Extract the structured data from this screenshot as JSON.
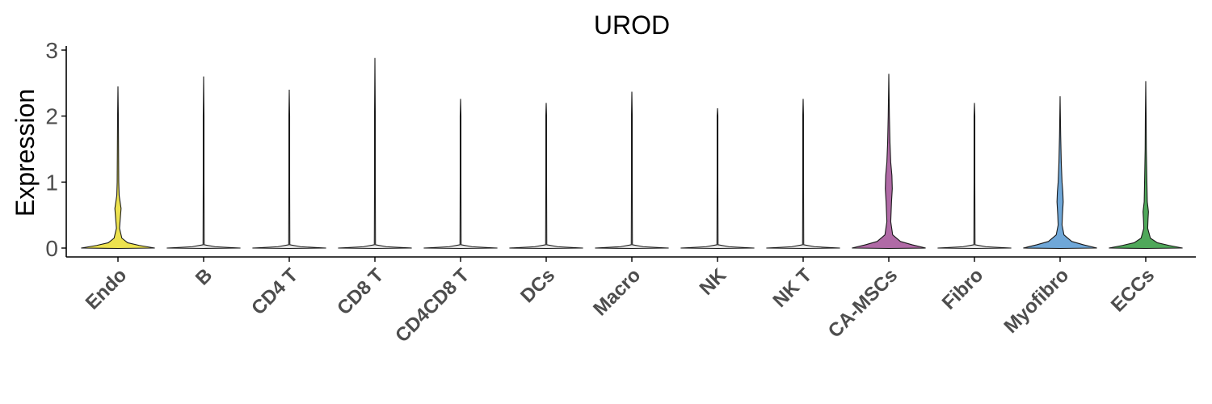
{
  "chart_data": {
    "type": "violin",
    "title": "UROD",
    "ylabel": "Expression",
    "xlabel": "",
    "ylim": [
      0,
      3
    ],
    "yticks": [
      0,
      1,
      2,
      3
    ],
    "grid": false,
    "legend": "none",
    "categories": [
      "Endo",
      "B",
      "CD4 T",
      "CD8 T",
      "CD4CD8 T",
      "DCs",
      "Macro",
      "NK",
      "NK T",
      "CA-MSCs",
      "Fibro",
      "Myofibro",
      "ECCs"
    ],
    "colors": [
      "#ede24f",
      "#e8e8e8",
      "#e8e8e8",
      "#e8e8e8",
      "#e8e8e8",
      "#e8e8e8",
      "#e8e8e8",
      "#e8e8e8",
      "#e8e8e8",
      "#b06aa6",
      "#e8e8e8",
      "#6fa7d8",
      "#4fa85a"
    ],
    "max_values": [
      2.45,
      2.6,
      2.4,
      2.88,
      2.26,
      2.2,
      2.37,
      2.12,
      2.26,
      2.64,
      2.2,
      2.3,
      2.53
    ],
    "density_profiles": [
      [
        [
          0.0,
          0.95
        ],
        [
          0.04,
          0.55
        ],
        [
          0.08,
          0.25
        ],
        [
          0.15,
          0.1
        ],
        [
          0.3,
          0.04
        ],
        [
          0.45,
          0.06
        ],
        [
          0.6,
          0.08
        ],
        [
          0.8,
          0.03
        ],
        [
          1.0,
          0.02
        ],
        [
          1.5,
          0.015
        ],
        [
          2.0,
          0.01
        ],
        [
          2.45,
          0.0
        ]
      ],
      [
        [
          0.0,
          0.95
        ],
        [
          0.02,
          0.3
        ],
        [
          0.05,
          0.015
        ],
        [
          1.0,
          0.01
        ],
        [
          2.0,
          0.01
        ],
        [
          2.6,
          0.0
        ]
      ],
      [
        [
          0.0,
          0.95
        ],
        [
          0.02,
          0.3
        ],
        [
          0.05,
          0.015
        ],
        [
          1.0,
          0.01
        ],
        [
          2.0,
          0.01
        ],
        [
          2.4,
          0.0
        ]
      ],
      [
        [
          0.0,
          0.95
        ],
        [
          0.02,
          0.3
        ],
        [
          0.05,
          0.015
        ],
        [
          1.0,
          0.01
        ],
        [
          2.0,
          0.01
        ],
        [
          2.88,
          0.0
        ]
      ],
      [
        [
          0.0,
          0.95
        ],
        [
          0.02,
          0.3
        ],
        [
          0.05,
          0.015
        ],
        [
          1.0,
          0.01
        ],
        [
          2.0,
          0.01
        ],
        [
          2.26,
          0.0
        ]
      ],
      [
        [
          0.0,
          0.95
        ],
        [
          0.02,
          0.3
        ],
        [
          0.05,
          0.015
        ],
        [
          1.0,
          0.01
        ],
        [
          2.0,
          0.01
        ],
        [
          2.2,
          0.0
        ]
      ],
      [
        [
          0.0,
          0.95
        ],
        [
          0.02,
          0.3
        ],
        [
          0.05,
          0.015
        ],
        [
          1.0,
          0.01
        ],
        [
          2.0,
          0.01
        ],
        [
          2.37,
          0.0
        ]
      ],
      [
        [
          0.0,
          0.95
        ],
        [
          0.02,
          0.3
        ],
        [
          0.05,
          0.015
        ],
        [
          1.0,
          0.01
        ],
        [
          2.0,
          0.01
        ],
        [
          2.12,
          0.0
        ]
      ],
      [
        [
          0.0,
          0.95
        ],
        [
          0.02,
          0.3
        ],
        [
          0.05,
          0.015
        ],
        [
          1.0,
          0.01
        ],
        [
          2.0,
          0.01
        ],
        [
          2.26,
          0.0
        ]
      ],
      [
        [
          0.0,
          0.95
        ],
        [
          0.05,
          0.6
        ],
        [
          0.1,
          0.3
        ],
        [
          0.2,
          0.1
        ],
        [
          0.4,
          0.05
        ],
        [
          0.7,
          0.07
        ],
        [
          0.9,
          0.09
        ],
        [
          1.1,
          0.08
        ],
        [
          1.3,
          0.05
        ],
        [
          1.6,
          0.03
        ],
        [
          2.0,
          0.015
        ],
        [
          2.64,
          0.0
        ]
      ],
      [
        [
          0.0,
          0.95
        ],
        [
          0.02,
          0.3
        ],
        [
          0.05,
          0.015
        ],
        [
          1.0,
          0.01
        ],
        [
          2.0,
          0.01
        ],
        [
          2.2,
          0.0
        ]
      ],
      [
        [
          0.0,
          0.95
        ],
        [
          0.05,
          0.6
        ],
        [
          0.1,
          0.3
        ],
        [
          0.2,
          0.1
        ],
        [
          0.35,
          0.05
        ],
        [
          0.5,
          0.06
        ],
        [
          0.7,
          0.08
        ],
        [
          0.85,
          0.07
        ],
        [
          1.0,
          0.05
        ],
        [
          1.3,
          0.03
        ],
        [
          1.7,
          0.015
        ],
        [
          2.3,
          0.0
        ]
      ],
      [
        [
          0.0,
          0.95
        ],
        [
          0.04,
          0.6
        ],
        [
          0.08,
          0.3
        ],
        [
          0.15,
          0.12
        ],
        [
          0.3,
          0.05
        ],
        [
          0.45,
          0.06
        ],
        [
          0.55,
          0.07
        ],
        [
          0.7,
          0.04
        ],
        [
          1.0,
          0.03
        ],
        [
          1.5,
          0.015
        ],
        [
          2.0,
          0.01
        ],
        [
          2.53,
          0.0
        ]
      ]
    ]
  }
}
